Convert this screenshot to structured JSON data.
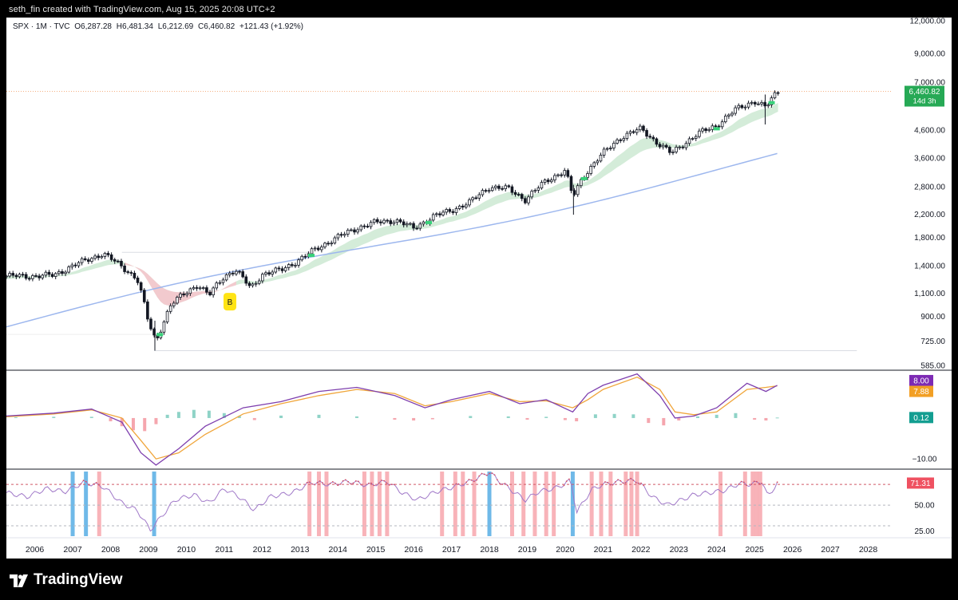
{
  "caption": "seth_fin created with TradingView.com, Aug 15, 2025 20:08 UTC+2",
  "brand": {
    "name": "TradingView",
    "logo_icon": "tradingview-logo-icon"
  },
  "legend": {
    "symbol": "SPX · 1M · TVC",
    "open": "O6,287.28",
    "high": "H6,481.34",
    "low": "L6,212.69",
    "close": "C6,460.82",
    "change": "+121.43 (+1.92%)"
  },
  "colors": {
    "up": "#22ab94",
    "down": "#f23645",
    "candle_body": "#131722",
    "ema_band": "#c9e7cf",
    "ema_band_red": "#f5c6cc",
    "sma_line": "#9db7ee",
    "macd": "#7e3fae",
    "signal": "#f0a53a",
    "rsi_line": "#d8505e",
    "rsi_line_soft": "#a078c8",
    "rsi_marker_red": "#f7a6ad",
    "rsi_marker_blue": "#5fb1e6",
    "price_badge": "#26a955",
    "macd_badge": "#7d2ab4",
    "signal_badge": "#f29f24",
    "hist_badge": "#139e91",
    "rsi_badge": "#ef5161"
  },
  "price_badge": {
    "value": "6,460.82",
    "countdown": "14d 3h"
  },
  "annotation": {
    "label": "B"
  },
  "chart_data": [
    {
      "type": "line",
      "title": "SPX · 1M · TVC",
      "scale": "log",
      "x": [
        2006.0,
        2006.5,
        2007.0,
        2007.5,
        2007.8,
        2008.3,
        2008.7,
        2009.0,
        2009.2,
        2009.6,
        2010.0,
        2010.3,
        2010.6,
        2011.0,
        2011.3,
        2011.7,
        2012.0,
        2012.5,
        2013.0,
        2013.5,
        2014.0,
        2014.5,
        2015.0,
        2015.5,
        2016.0,
        2016.5,
        2017.0,
        2017.5,
        2018.0,
        2018.5,
        2018.95,
        2019.5,
        2020.0,
        2020.2,
        2020.5,
        2021.0,
        2021.5,
        2022.0,
        2022.4,
        2022.8,
        2023.0,
        2023.5,
        2024.0,
        2024.5,
        2025.0,
        2025.3,
        2025.6
      ],
      "series": [
        {
          "values": [
            1280,
            1290,
            1400,
            1500,
            1560,
            1390,
            1250,
            850,
            720,
            1000,
            1110,
            1190,
            1080,
            1280,
            1350,
            1150,
            1300,
            1350,
            1480,
            1650,
            1800,
            1950,
            2050,
            2090,
            1950,
            2150,
            2280,
            2450,
            2800,
            2750,
            2500,
            2950,
            3230,
            2550,
            3100,
            3750,
            4350,
            4650,
            4150,
            3750,
            3950,
            4450,
            4800,
            5500,
            5950,
            5600,
            6460
          ]
        }
      ],
      "ylim": [
        585,
        12000
      ],
      "yticks": [
        "12,000.00",
        "9,000.00",
        "7,000.00",
        "4,600.00",
        "3,600.00",
        "2,800.00",
        "2,200.00",
        "1,800.00",
        "1,400.00",
        "1,100.00",
        "900.00",
        "725.00",
        "585.00"
      ],
      "ytick_values": [
        12000,
        9000,
        7000,
        4600,
        3600,
        2800,
        2200,
        1800,
        1400,
        1100,
        900,
        725,
        585
      ],
      "xlim": [
        2005.25,
        2028.6
      ]
    },
    {
      "type": "line",
      "series": [
        {
          "x": [
            2005.25,
            2006.5,
            2007.5,
            2008.3,
            2008.8,
            2009.2,
            2009.8,
            2010.5,
            2011.5,
            2012.5,
            2013.5,
            2014.5,
            2015.5,
            2016.3,
            2017.0,
            2018.0,
            2018.8,
            2019.5,
            2020.2,
            2020.6,
            2021.0,
            2021.9,
            2022.5,
            2022.9,
            2023.4,
            2024.0,
            2024.8,
            2025.3,
            2025.6
          ],
          "values": [
            0.5,
            1.2,
            2.2,
            -1.0,
            -8.5,
            -11.5,
            -7.5,
            -2.0,
            2.5,
            4.0,
            6.5,
            7.5,
            5.5,
            2.5,
            4.5,
            6.5,
            3.5,
            4.5,
            1.5,
            6.0,
            8.0,
            10.8,
            5.5,
            0.0,
            0.5,
            2.5,
            8.5,
            6.5,
            8.0
          ]
        },
        {
          "x": [
            2005.25,
            2006.5,
            2007.5,
            2008.3,
            2008.8,
            2009.2,
            2009.8,
            2010.5,
            2011.5,
            2012.5,
            2013.5,
            2014.5,
            2015.5,
            2016.3,
            2017.0,
            2018.0,
            2018.8,
            2019.5,
            2020.2,
            2020.6,
            2021.0,
            2021.9,
            2022.5,
            2022.9,
            2023.4,
            2024.0,
            2024.8,
            2025.3,
            2025.6
          ],
          "values": [
            0.3,
            1.0,
            2.0,
            0.0,
            -5.5,
            -10.0,
            -8.5,
            -4.0,
            1.0,
            3.5,
            5.5,
            7.0,
            6.0,
            3.0,
            4.0,
            6.0,
            4.0,
            4.2,
            2.5,
            4.5,
            7.0,
            10.0,
            7.0,
            1.5,
            0.8,
            1.5,
            7.0,
            7.5,
            7.88
          ]
        }
      ],
      "hist": {
        "x": [
          2005.5,
          2006.5,
          2007.5,
          2008.0,
          2008.3,
          2008.6,
          2008.9,
          2009.2,
          2009.5,
          2009.8,
          2010.2,
          2010.6,
          2011.0,
          2011.4,
          2011.8,
          2012.5,
          2013.5,
          2014.5,
          2015.5,
          2016.0,
          2016.5,
          2017.5,
          2018.5,
          2019.0,
          2019.5,
          2020.0,
          2020.3,
          2020.8,
          2021.3,
          2021.8,
          2022.2,
          2022.6,
          2023.0,
          2023.5,
          2024.0,
          2024.5,
          2025.0,
          2025.3,
          2025.6
        ],
        "values": [
          0.2,
          0.3,
          0.3,
          -0.8,
          -2.0,
          -3.0,
          -3.2,
          -1.5,
          0.8,
          1.5,
          2.0,
          1.8,
          1.2,
          0.5,
          -0.5,
          0.6,
          0.8,
          0.4,
          -0.4,
          -0.6,
          -0.3,
          0.5,
          0.4,
          -0.4,
          0.3,
          -0.5,
          -0.8,
          0.9,
          1.0,
          0.9,
          -1.2,
          -1.8,
          -0.6,
          0.4,
          0.8,
          1.2,
          -0.4,
          -0.6,
          0.12
        ]
      },
      "ylim": [
        -12.5,
        11.5
      ],
      "ytick_labels": [
        "8.00",
        "7.88",
        "0.12",
        "−10.00"
      ],
      "ytick_values": [
        8.0,
        7.88,
        0.12,
        -10.0
      ]
    },
    {
      "type": "line",
      "series": [
        {
          "x": [
            2005.25,
            2005.8,
            2006.3,
            2006.8,
            2007.3,
            2007.8,
            2008.3,
            2008.7,
            2009.05,
            2009.3,
            2009.7,
            2010.2,
            2010.6,
            2011.0,
            2011.4,
            2011.8,
            2012.2,
            2012.8,
            2013.3,
            2013.8,
            2014.3,
            2014.8,
            2015.3,
            2015.7,
            2016.1,
            2016.6,
            2017.0,
            2017.5,
            2018.0,
            2018.2,
            2018.6,
            2018.95,
            2019.3,
            2019.8,
            2020.15,
            2020.3,
            2020.7,
            2021.0,
            2021.5,
            2021.9,
            2022.3,
            2022.7,
            2023.0,
            2023.4,
            2023.8,
            2024.2,
            2024.6,
            2024.9,
            2025.2,
            2025.35,
            2025.6
          ],
          "values": [
            62,
            58,
            66,
            63,
            72,
            68,
            52,
            45,
            26,
            37,
            55,
            60,
            52,
            66,
            58,
            45,
            58,
            62,
            72,
            70,
            73,
            69,
            73,
            62,
            55,
            63,
            67,
            73,
            82,
            75,
            64,
            55,
            63,
            67,
            74,
            43,
            65,
            70,
            73,
            74,
            58,
            50,
            54,
            60,
            62,
            64,
            71,
            70,
            73,
            58,
            71.31
          ]
        }
      ],
      "ylim": [
        20,
        84
      ],
      "ytick_labels": [
        "71.31",
        "50.00",
        "25.00"
      ],
      "ytick_values": [
        71.31,
        50,
        25
      ],
      "levels": [
        70,
        50,
        30
      ],
      "markers_red": [
        2007.7,
        2013.25,
        2013.5,
        2013.7,
        2014.7,
        2014.9,
        2015.1,
        2015.3,
        2016.75,
        2017.1,
        2017.3,
        2017.6,
        2018.6,
        2018.9,
        2019.2,
        2019.5,
        2019.7,
        2020.7,
        2020.95,
        2021.2,
        2021.6,
        2021.75,
        2021.9,
        2024.1,
        2024.75,
        2024.95,
        2025.05,
        2025.15
      ],
      "markers_blue": [
        2007.0,
        2007.35,
        2009.15,
        2018.0,
        2020.2
      ]
    }
  ],
  "x_axis": {
    "labels": [
      "2006",
      "2007",
      "2008",
      "2009",
      "2010",
      "2011",
      "2012",
      "2013",
      "2014",
      "2015",
      "2016",
      "2017",
      "2018",
      "2019",
      "2020",
      "2021",
      "2022",
      "2023",
      "2024",
      "2025",
      "2026",
      "2027",
      "2028"
    ],
    "values": [
      2006,
      2007,
      2008,
      2009,
      2010,
      2011,
      2012,
      2013,
      2014,
      2015,
      2016,
      2017,
      2018,
      2019,
      2020,
      2021,
      2022,
      2023,
      2024,
      2025,
      2026,
      2027,
      2028
    ]
  }
}
